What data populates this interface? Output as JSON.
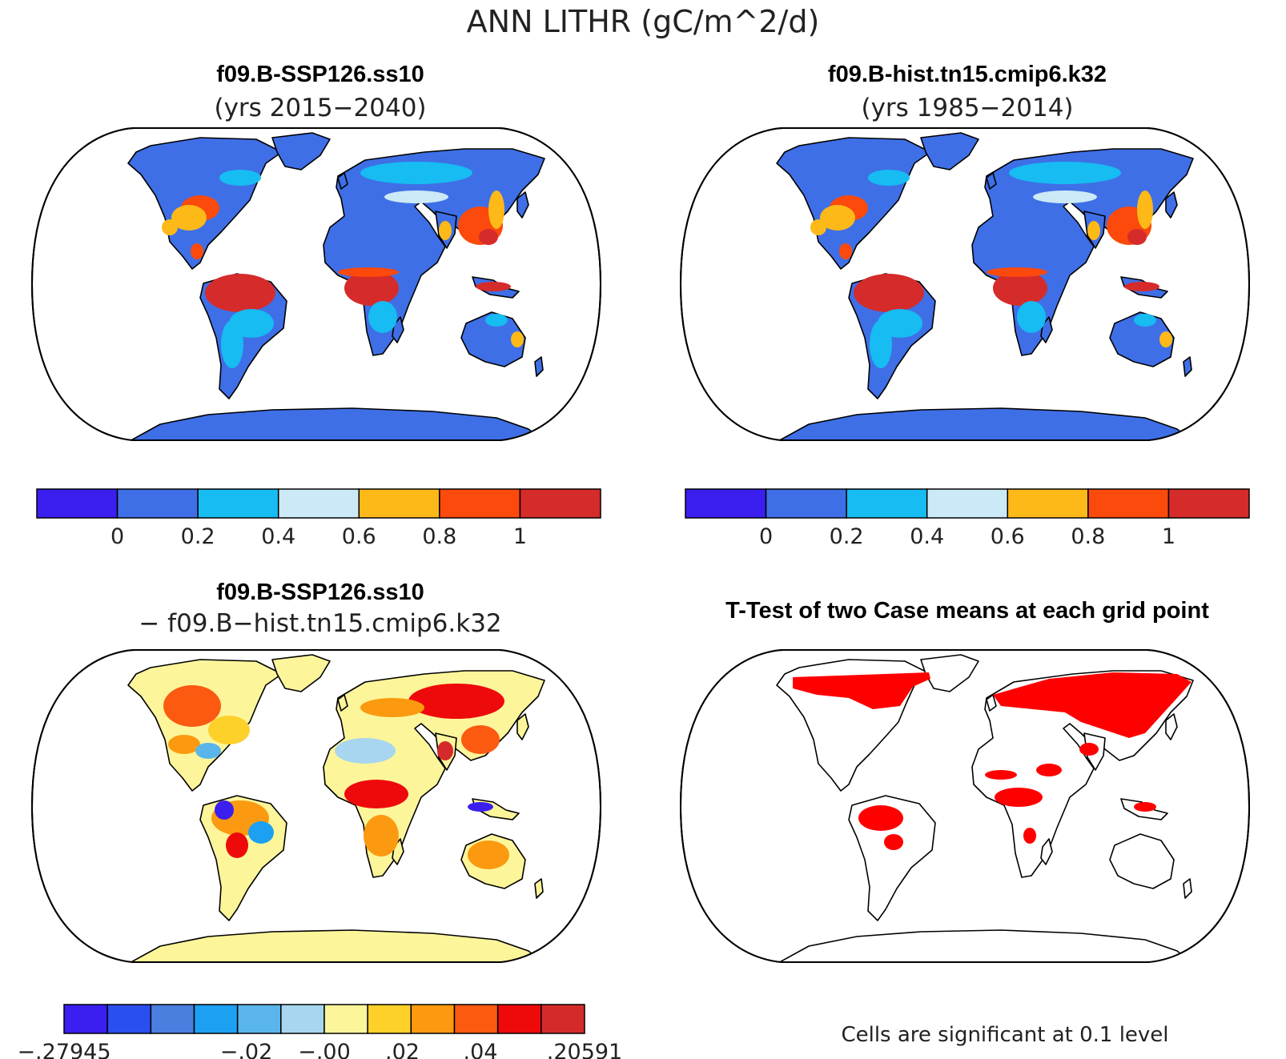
{
  "figure": {
    "title": "ANN LITHR (gC/m^2/d)"
  },
  "panels": [
    {
      "id": "case1",
      "title": "f09.B-SSP126.ss10",
      "subtitle": "(yrs 2015−2040)",
      "type": "mean"
    },
    {
      "id": "case2",
      "title": "f09.B-hist.tn15.cmip6.k32",
      "subtitle": "(yrs 1985−2014)",
      "type": "mean"
    },
    {
      "id": "diff",
      "title": "f09.B-SSP126.ss10",
      "subtitle": "− f09.B−hist.tn15.cmip6.k32",
      "type": "difference"
    },
    {
      "id": "ttest",
      "title": "T-Test of two Case means at each grid point",
      "subtitle": "",
      "type": "significance",
      "note": "Cells are significant at 0.1 level",
      "significant_color": "#ff0000"
    }
  ],
  "colorbars": {
    "mean": {
      "colors": [
        "#3a1ff0",
        "#3f6fe6",
        "#16bcf2",
        "#cce9f7",
        "#fdb918",
        "#fb4a0c",
        "#d62b2b"
      ],
      "tick_labels": [
        "0",
        "0.2",
        "0.4",
        "0.6",
        "0.8",
        "1"
      ]
    },
    "diff": {
      "colors": [
        "#3a1ff0",
        "#2a4ef0",
        "#4a7fe0",
        "#1ca0f2",
        "#5ab6ea",
        "#a8d6f0",
        "#fdf59a",
        "#fdd02a",
        "#fb9a10",
        "#fb5a10",
        "#ee0a0a",
        "#d42a2a"
      ],
      "tick_labels": [
        "−.27945",
        "−.02",
        "−.00",
        ".02",
        ".04",
        ".20591"
      ]
    }
  }
}
